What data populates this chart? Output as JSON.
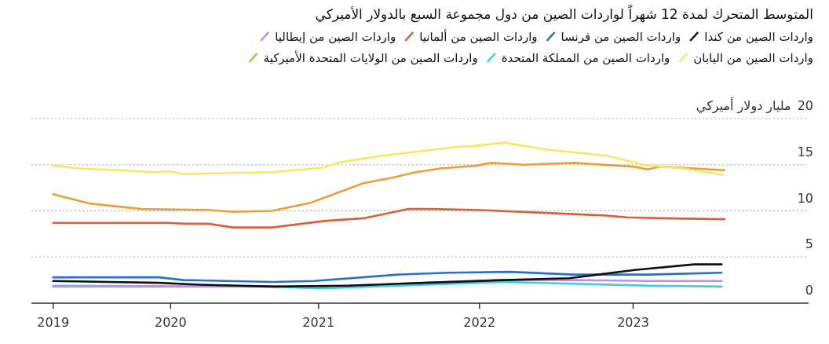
{
  "chart_data": {
    "type": "line",
    "title": "المتوسط المتحرك لمدة 12 شهراً لواردات الصين من دول مجموعة السبع بالدولار الأميركي",
    "ylabel": "مليار دولار أميركي",
    "xlim": [
      2018.85,
      2024.21
    ],
    "ylim": [
      0,
      20
    ],
    "xticks": [
      {
        "value": 2019.0,
        "label": "2019"
      },
      {
        "value": 2019.81,
        "label": "2020"
      },
      {
        "value": 2020.83,
        "label": "2021"
      },
      {
        "value": 2021.94,
        "label": "2022"
      },
      {
        "value": 2023.0,
        "label": "2023"
      }
    ],
    "yticks": [
      0,
      5,
      10,
      15,
      20
    ],
    "grid": "y",
    "legend": "top",
    "marker": "none",
    "line_style": "solid",
    "series": [
      {
        "name": "واردات الصين من كندا",
        "color": "#111111",
        "x": [
          2019.0,
          2019.73,
          2020.01,
          2020.52,
          2021.04,
          2021.56,
          2022.11,
          2022.56,
          2023.01,
          2023.42,
          2023.61
        ],
        "values": [
          2.4,
          2.2,
          2.0,
          1.8,
          1.9,
          2.2,
          2.5,
          2.7,
          3.6,
          4.2,
          4.2
        ]
      },
      {
        "name": "واردات الصين من فرنسا",
        "color": "#2a6fc9",
        "x": [
          2019.0,
          2019.73,
          2019.9,
          2020.52,
          2020.8,
          2021.38,
          2021.73,
          2022.15,
          2022.59,
          2023.11,
          2023.61
        ],
        "values": [
          2.8,
          2.8,
          2.5,
          2.3,
          2.4,
          3.1,
          3.3,
          3.4,
          3.1,
          3.1,
          3.3
        ]
      },
      {
        "name": "واردات الصين من ألمانيا",
        "color": "#d9603b",
        "x": [
          2019.0,
          2019.61,
          2019.79,
          2019.91,
          2020.07,
          2020.24,
          2020.51,
          2020.87,
          2021.14,
          2021.45,
          2021.59,
          2021.92,
          2022.37,
          2022.81,
          2022.96,
          2023.19,
          2023.63
        ],
        "values": [
          8.7,
          8.7,
          8.7,
          8.6,
          8.6,
          8.2,
          8.2,
          8.9,
          9.2,
          10.2,
          10.2,
          10.1,
          9.8,
          9.5,
          9.3,
          9.2,
          9.1
        ]
      },
      {
        "name": "واردات الصين من إيطاليا",
        "color": "#c08fe0",
        "x": [
          2019.0,
          2020.83,
          2021.56,
          2022.08,
          2022.59,
          2023.11,
          2023.61
        ],
        "values": [
          1.8,
          1.8,
          2.2,
          2.5,
          2.5,
          2.4,
          2.4
        ]
      },
      {
        "name": "واردات الصين من اليابان",
        "color": "#f3e86a",
        "x": [
          2019.0,
          2019.19,
          2019.45,
          2019.7,
          2019.8,
          2019.9,
          2020.24,
          2020.51,
          2020.87,
          2020.96,
          2021.23,
          2021.5,
          2021.77,
          2021.95,
          2022.11,
          2022.42,
          2022.81,
          2023.07,
          2023.34,
          2023.62
        ],
        "values": [
          14.9,
          14.6,
          14.4,
          14.2,
          14.3,
          14.0,
          14.1,
          14.2,
          14.7,
          15.2,
          15.9,
          16.4,
          16.9,
          17.1,
          17.4,
          16.6,
          16.0,
          15.0,
          14.6,
          13.9
        ]
      },
      {
        "name": "واردات الصين من المملكة المتحدة",
        "color": "#39d0dd",
        "x": [
          2019.0,
          2020.52,
          2020.83,
          2021.38,
          2022.11,
          2022.59,
          2023.11,
          2023.61
        ],
        "values": [
          1.9,
          1.8,
          1.6,
          1.9,
          2.3,
          2.1,
          1.9,
          1.8
        ]
      },
      {
        "name": "واردات الصين من الولايات المتحدة الأميركية",
        "color": "#e8a13a",
        "x": [
          2019.0,
          2019.25,
          2019.61,
          2020.06,
          2020.24,
          2020.51,
          2020.78,
          2021.14,
          2021.34,
          2021.5,
          2021.67,
          2021.92,
          2022.02,
          2022.25,
          2022.59,
          2023.0,
          2023.1,
          2023.19,
          2023.63
        ],
        "values": [
          11.8,
          10.8,
          10.2,
          10.1,
          9.9,
          10.0,
          10.9,
          13.0,
          13.6,
          14.2,
          14.6,
          14.9,
          15.2,
          15.0,
          15.2,
          14.8,
          14.5,
          14.8,
          14.4
        ]
      }
    ]
  }
}
